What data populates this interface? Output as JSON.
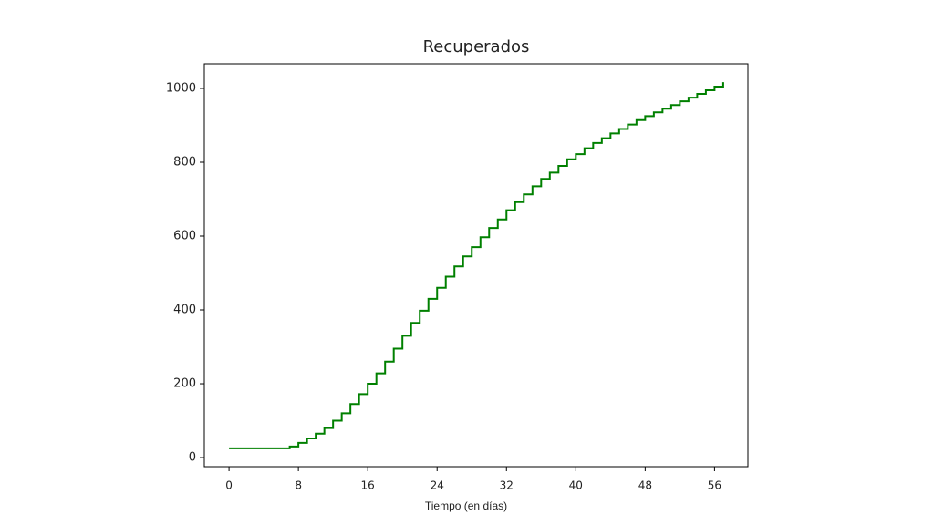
{
  "chart_data": {
    "type": "line",
    "drawstyle": "steps-post",
    "title": "Recuperados",
    "x_label": "Tiempo (en días)",
    "x": [
      0,
      1,
      2,
      3,
      4,
      5,
      6,
      7,
      8,
      9,
      10,
      11,
      12,
      13,
      14,
      15,
      16,
      17,
      18,
      19,
      20,
      21,
      22,
      23,
      24,
      25,
      26,
      27,
      28,
      29,
      30,
      31,
      32,
      33,
      34,
      35,
      36,
      37,
      38,
      39,
      40,
      41,
      42,
      43,
      44,
      45,
      46,
      47,
      48,
      49,
      50,
      51,
      52,
      53,
      54,
      55,
      56,
      57
    ],
    "series": [
      {
        "name": "Recuperados",
        "color": "#008000",
        "values": [
          25,
          25,
          25,
          25,
          25,
          25,
          25,
          30,
          40,
          52,
          65,
          80,
          100,
          120,
          145,
          172,
          200,
          228,
          260,
          295,
          330,
          365,
          398,
          430,
          460,
          490,
          518,
          545,
          570,
          597,
          622,
          645,
          670,
          692,
          713,
          735,
          755,
          772,
          790,
          808,
          822,
          838,
          852,
          865,
          878,
          890,
          902,
          914,
          925,
          935,
          945,
          955,
          965,
          975,
          985,
          995,
          1005,
          1017
        ]
      }
    ],
    "xlim": [
      -2.85,
      59.85
    ],
    "ylim": [
      -24.6,
      1066.6
    ],
    "xticks": [
      0,
      8,
      16,
      24,
      32,
      40,
      48,
      56
    ],
    "yticks": [
      0,
      200,
      400,
      600,
      800,
      1000
    ],
    "grid": false
  }
}
